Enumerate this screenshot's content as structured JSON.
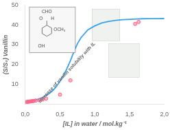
{
  "chart_data": {
    "type": "scatter",
    "x_label": "[IL] in water / mol.kg⁻¹",
    "y_label": "(S/S₀) Vanillin",
    "annotations": [
      "Increase of vanilin solubility with IL"
    ],
    "inset": [
      "CHO",
      "O",
      "H",
      "OCH₃",
      "OH"
    ],
    "series": [
      {
        "type": "line",
        "x": [
          0.0,
          0.02,
          0.04,
          0.06,
          0.08,
          0.1,
          0.12,
          0.15,
          0.18,
          0.2,
          0.25,
          0.3,
          0.35,
          0.4,
          0.45,
          0.5,
          0.55,
          0.6,
          0.65,
          0.7,
          0.75,
          0.8,
          0.9,
          1.0,
          1.1,
          1.2,
          1.3,
          1.4,
          1.5,
          1.6,
          1.7,
          1.8,
          1.9,
          2.0
        ],
        "values": [
          1.0,
          1.1,
          1.2,
          1.35,
          1.5,
          1.65,
          1.8,
          2.1,
          2.45,
          2.7,
          3.4,
          4.3,
          5.5,
          7.0,
          9.0,
          11.5,
          14.5,
          18.0,
          22.0,
          26.5,
          30.5,
          33.5,
          37.5,
          39.5,
          41.0,
          41.8,
          42.3,
          42.6,
          42.8,
          43.0,
          43.1,
          43.15,
          43.18,
          43.2
        ]
      },
      {
        "type": "scatter",
        "x": [
          0.02,
          0.04,
          0.06,
          0.08,
          0.1,
          0.12,
          0.15,
          0.2,
          0.25,
          0.3,
          0.5,
          0.65,
          1.58,
          1.63
        ],
        "values": [
          1.1,
          1.2,
          1.3,
          1.4,
          1.5,
          1.6,
          1.8,
          2.0,
          2.4,
          2.8,
          4.8,
          12.0,
          40.5,
          41.5
        ]
      }
    ],
    "xlim": [
      0.0,
      2.0
    ],
    "ylim": [
      0,
      50
    ],
    "xticks": [
      {
        "value": 0.0,
        "label": "0,0"
      },
      {
        "value": 0.5,
        "label": "0,5"
      },
      {
        "value": 1.0,
        "label": "1,0"
      },
      {
        "value": 1.5,
        "label": "1,5"
      },
      {
        "value": 2.0,
        "label": "2,0"
      }
    ],
    "yticks": [
      {
        "value": 0,
        "label": null
      },
      10,
      20,
      30,
      40,
      50
    ],
    "grid": false
  }
}
